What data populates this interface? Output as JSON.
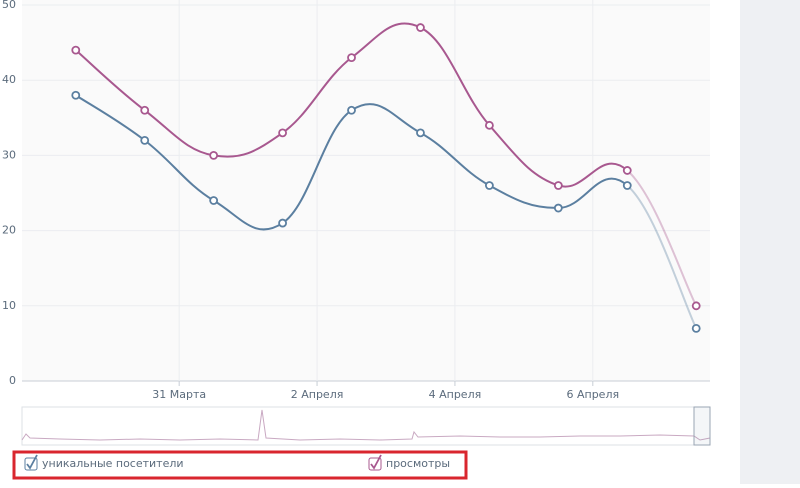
{
  "chart_data": {
    "type": "line",
    "smooth": true,
    "x": [
      0,
      1,
      2,
      3,
      4,
      5,
      6,
      7,
      8,
      9
    ],
    "xlim": [
      -0.78,
      9.2
    ],
    "xticks": [
      {
        "value": 1.5,
        "label": "31 Марта"
      },
      {
        "value": 3.5,
        "label": "2 Апреля"
      },
      {
        "value": 5.5,
        "label": "4 Апреля"
      },
      {
        "value": 7.5,
        "label": "6 Апреля"
      }
    ],
    "ylim": [
      0,
      50
    ],
    "yticks": [
      0,
      10,
      20,
      30,
      40,
      50
    ],
    "grid": true,
    "series": [
      {
        "name": "уникальные посетители",
        "color": "#5b7fa0",
        "values": [
          38,
          32,
          24,
          21,
          36,
          33,
          26,
          23,
          26,
          7
        ]
      },
      {
        "name": "просмотры",
        "color": "#a8588f",
        "values": [
          44,
          36,
          30,
          33,
          43,
          47,
          34,
          26,
          28,
          10
        ]
      }
    ]
  }
}
